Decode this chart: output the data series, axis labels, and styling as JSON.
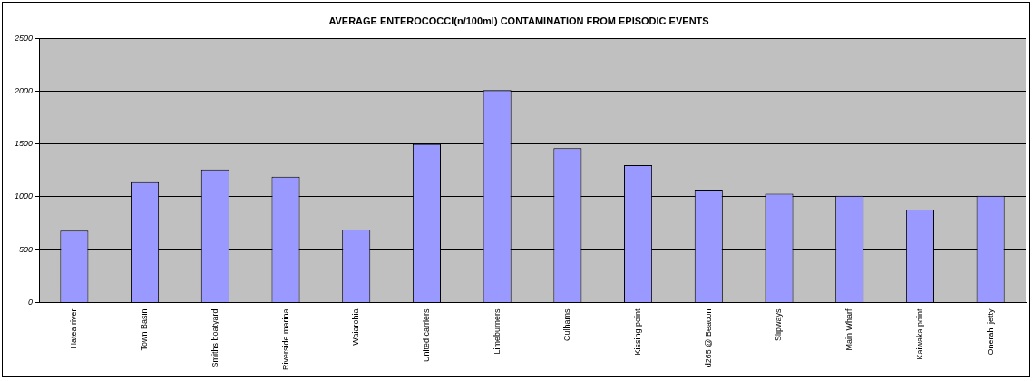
{
  "chart_data": {
    "type": "bar",
    "title": "AVERAGE ENTEROCOCCI(n/100ml) CONTAMINATION FROM EPISODIC EVENTS",
    "categories": [
      "Hatea river",
      "Town Basin",
      "Smiths boatyard",
      "Riverside marina",
      "Waiarohia",
      "United carriers",
      "Limeburners",
      "Culhams",
      "Kissing point",
      "d265 @ Beacon",
      "Slipways",
      "Main Wharf",
      "Kaiwaka point",
      "Onerahi jetty"
    ],
    "values": [
      680,
      1140,
      1260,
      1190,
      690,
      1500,
      2010,
      1460,
      1300,
      1060,
      1030,
      1010,
      880,
      1010
    ],
    "color": "#9999ff",
    "ylim": [
      0,
      2500
    ],
    "yticks": [
      0,
      500,
      1000,
      1500,
      2000,
      2500
    ],
    "grid": "y"
  }
}
